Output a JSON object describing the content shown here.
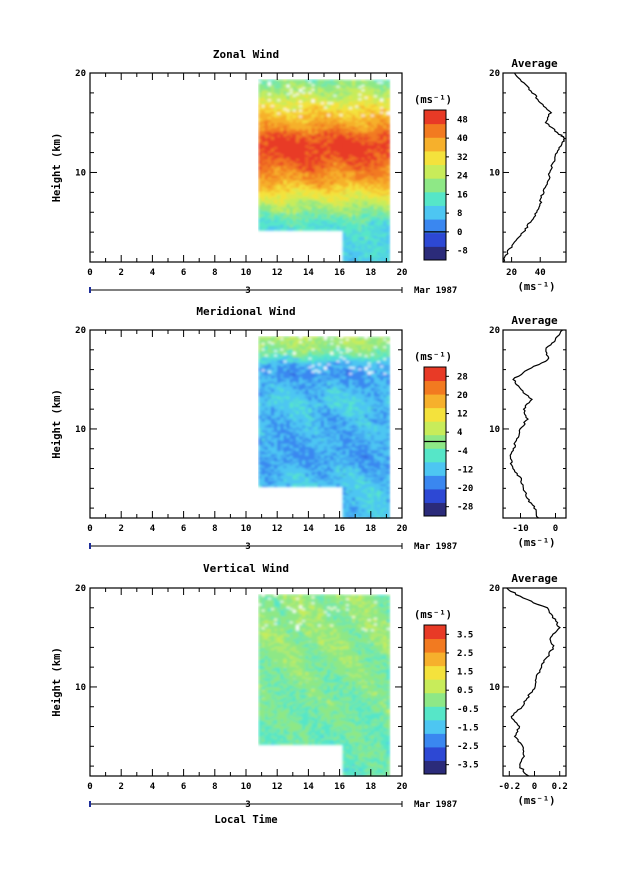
{
  "chart_data": [
    {
      "type": "heatmap",
      "title": "Zonal Wind",
      "ylabel": "Height (km)",
      "xlim": [
        0,
        20
      ],
      "ylim": [
        1,
        20
      ],
      "x_ticks": [
        "0",
        "2",
        "4",
        "6",
        "8",
        "10",
        "12",
        "14",
        "16",
        "18",
        "20"
      ],
      "y_ticks": [
        "10",
        "20"
      ],
      "date_marker": "3",
      "date_label": "Mar 1987",
      "xlabel": "",
      "colorbar": {
        "unit": "(ms⁻¹)",
        "ticks": [
          "-8",
          "0",
          "8",
          "16",
          "24",
          "32",
          "40",
          "48"
        ],
        "range": [
          -12,
          52
        ],
        "zero_contour": true
      },
      "data_extent": {
        "x_start": 10.8,
        "x_end": 19.0,
        "x_notch": 16.1,
        "y_top": 19.2,
        "y_bottom_early": 4.2,
        "y_bottom_late": 1.0
      },
      "profile_levels_km": [
        1,
        3,
        5,
        7,
        9,
        11,
        12.5,
        13.5,
        14.5,
        16,
        17.5,
        19,
        20
      ],
      "profile_field": [
        10,
        11,
        14,
        26,
        38,
        46,
        50,
        47,
        40,
        34,
        26,
        20,
        18
      ],
      "average": {
        "title": "Average",
        "xlabel": "(ms⁻¹)",
        "x_ticks": [
          "20",
          "40"
        ],
        "xlim": [
          14,
          58
        ],
        "y": [
          1,
          2,
          3,
          4,
          5,
          6,
          7,
          8,
          9,
          10,
          11,
          12,
          13,
          13.5,
          14,
          15,
          16,
          17,
          18,
          19,
          20
        ],
        "x": [
          14,
          17,
          22,
          28,
          33,
          38,
          40,
          42,
          45,
          47,
          49,
          52,
          56,
          57,
          52,
          44,
          47,
          40,
          35,
          28,
          22
        ]
      }
    },
    {
      "type": "heatmap",
      "title": "Meridional Wind",
      "ylabel": "Height (km)",
      "xlim": [
        0,
        20
      ],
      "ylim": [
        1,
        20
      ],
      "x_ticks": [
        "0",
        "2",
        "4",
        "6",
        "8",
        "10",
        "12",
        "14",
        "16",
        "18",
        "20"
      ],
      "y_ticks": [
        "10",
        "20"
      ],
      "date_marker": "3",
      "date_label": "Mar 1987",
      "xlabel": "",
      "colorbar": {
        "unit": "(ms⁻¹)",
        "ticks": [
          "-28",
          "-20",
          "-12",
          "-4",
          "4",
          "12",
          "20",
          "28"
        ],
        "range": [
          -32,
          32
        ],
        "zero_contour": true
      },
      "data_extent": {
        "x_start": 10.8,
        "x_end": 19.0,
        "x_notch": 16.1,
        "y_top": 19.2,
        "y_bottom_early": 4.2,
        "y_bottom_late": 1.0
      },
      "profile_levels_km": [
        1,
        3,
        5,
        7,
        9,
        11,
        12.5,
        14,
        15.5,
        16.5,
        17.5,
        18.5,
        20
      ],
      "profile_field": [
        -12,
        -11,
        -12,
        -15,
        -14,
        -13,
        -10,
        -13,
        -16,
        -14,
        -3,
        2,
        4
      ],
      "average": {
        "title": "Average",
        "xlabel": "(ms⁻¹)",
        "x_ticks": [
          "-10",
          "0"
        ],
        "xlim": [
          -15,
          3
        ],
        "y": [
          1,
          2,
          3,
          4,
          5,
          6,
          7,
          8,
          9,
          10,
          11,
          12,
          13,
          14,
          15,
          16,
          17,
          18,
          19,
          20
        ],
        "x": [
          -5,
          -6,
          -8,
          -9,
          -10,
          -12,
          -13,
          -12,
          -11,
          -10,
          -8,
          -9,
          -7,
          -10,
          -12,
          -8,
          -2,
          -3,
          0,
          2
        ]
      }
    },
    {
      "type": "heatmap",
      "title": "Vertical Wind",
      "ylabel": "Height (km)",
      "xlim": [
        0,
        20
      ],
      "ylim": [
        1,
        20
      ],
      "x_ticks": [
        "0",
        "2",
        "4",
        "6",
        "8",
        "10",
        "12",
        "14",
        "16",
        "18",
        "20"
      ],
      "y_ticks": [
        "10",
        "20"
      ],
      "date_marker": "3",
      "date_label": "Mar 1987",
      "xlabel": "Local Time",
      "colorbar": {
        "unit": "(ms⁻¹)",
        "ticks": [
          "-3.5",
          "-2.5",
          "-1.5",
          "-0.5",
          "0.5",
          "1.5",
          "2.5",
          "3.5"
        ],
        "range": [
          -4,
          4
        ],
        "zero_contour": false
      },
      "data_extent": {
        "x_start": 10.8,
        "x_end": 19.0,
        "x_notch": 16.1,
        "y_top": 19.2,
        "y_bottom_early": 4.2,
        "y_bottom_late": 1.0
      },
      "profile_levels_km": [
        1,
        5,
        10,
        15,
        20
      ],
      "profile_field": [
        -0.6,
        -0.4,
        -0.2,
        0.1,
        0.0
      ],
      "average": {
        "title": "Average",
        "xlabel": "(ms⁻¹)",
        "x_ticks": [
          "-0.2",
          "0",
          "0.2"
        ],
        "xlim": [
          -0.25,
          0.25
        ],
        "y": [
          1,
          2,
          3,
          4,
          5,
          6,
          7,
          8,
          9,
          10,
          11,
          12,
          13,
          14,
          15,
          16,
          17,
          18,
          19,
          20
        ],
        "x": [
          -0.05,
          -0.12,
          -0.08,
          -0.1,
          -0.15,
          -0.12,
          -0.18,
          -0.1,
          -0.05,
          0.0,
          0.02,
          0.05,
          0.1,
          0.15,
          0.12,
          0.2,
          0.15,
          0.1,
          -0.1,
          -0.22
        ]
      }
    }
  ],
  "colors": {
    "scale": [
      "#2b2b7a",
      "#2d48d4",
      "#3a87f0",
      "#4dc6f2",
      "#56e6c8",
      "#8ee886",
      "#c8ec5a",
      "#f4e23c",
      "#f6b02c",
      "#f27a20",
      "#e83a26"
    ],
    "missing": "#ffffff",
    "axis": "#000000",
    "date_marker": "#1f2f9a"
  }
}
